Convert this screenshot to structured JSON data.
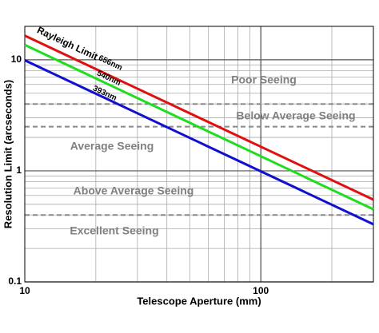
{
  "chart_data": {
    "type": "line",
    "log_x": true,
    "log_y": true,
    "grid": true,
    "x_label": "Telescope Aperture (mm)",
    "y_label": "Resolution Limit (arcseconds)",
    "xlim": [
      10,
      300
    ],
    "ylim": [
      0.1,
      20
    ],
    "xticks": [
      10,
      100
    ],
    "yticks": [
      0.1,
      1,
      10
    ],
    "xminor": [
      20,
      30,
      40,
      50,
      60,
      70,
      80,
      90,
      200,
      300
    ],
    "yminor": [
      0.2,
      0.3,
      0.4,
      0.5,
      0.6,
      0.7,
      0.8,
      0.9,
      2,
      3,
      4,
      5,
      6,
      7,
      8,
      9,
      20
    ],
    "threshold_lines": [
      4,
      2.5,
      0.4
    ],
    "annotation": "Rayleigh Limit",
    "regions": [
      "Poor Seeing",
      "Below Average Seeing",
      "Average Seeing",
      "Above Average Seeing",
      "Excellent Seeing"
    ],
    "x": [
      10,
      300
    ],
    "series": [
      {
        "name": "656nm",
        "color": "#e01010",
        "values": [
          16.5,
          0.55
        ]
      },
      {
        "name": "540nm",
        "color": "#20dd20",
        "values": [
          13.6,
          0.45
        ]
      },
      {
        "name": "393nm",
        "color": "#1010d0",
        "values": [
          9.9,
          0.33
        ]
      }
    ]
  }
}
